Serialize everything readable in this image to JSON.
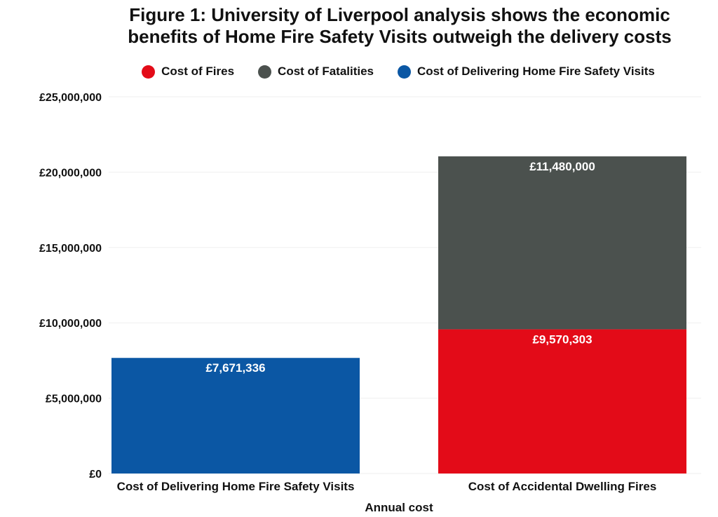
{
  "chart_data": {
    "type": "bar",
    "stacked": true,
    "title": "Figure 1: University of Liverpool analysis shows the economic benefits of Home Fire Safety Visits outweigh the delivery costs",
    "title_lines": [
      "Figure 1: University of Liverpool analysis shows the economic",
      "benefits of Home Fire Safety Visits outweigh the delivery costs"
    ],
    "xlabel": "Annual cost",
    "ylabel": "",
    "categories": [
      "Cost of Delivering Home Fire Safety Visits",
      "Cost of Accidental Dwelling Fires"
    ],
    "ylim": [
      0,
      25000000
    ],
    "yticks": [
      0,
      5000000,
      10000000,
      15000000,
      20000000,
      25000000
    ],
    "ytick_labels": [
      "£0",
      "£5,000,000",
      "£10,000,000",
      "£15,000,000",
      "£20,000,000",
      "£25,000,000"
    ],
    "grid": true,
    "legend_position": "top",
    "series": [
      {
        "name": "Cost of Fires",
        "color": "#e30b18",
        "values": [
          null,
          9570303
        ],
        "labels": [
          null,
          "£9,570,303"
        ]
      },
      {
        "name": "Cost of Fatalities",
        "color": "#4b514e",
        "values": [
          null,
          11480000
        ],
        "labels": [
          null,
          "£11,480,000"
        ]
      },
      {
        "name": "Cost of Delivering Home Fire Safety Visits",
        "color": "#0b57a4",
        "values": [
          7671336,
          null
        ],
        "labels": [
          "£7,671,336",
          null
        ]
      }
    ]
  }
}
